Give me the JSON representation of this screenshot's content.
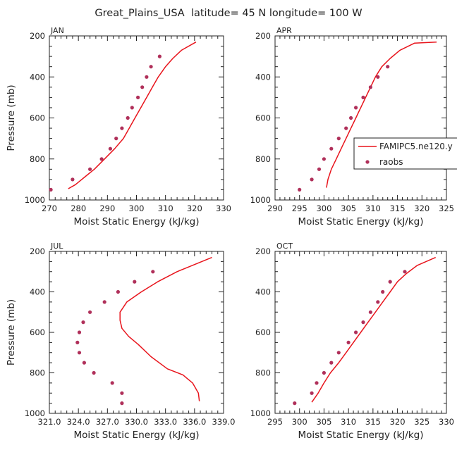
{
  "title": "Great_Plains_USA  latitude= 45 N longitude= 100 W",
  "colors": {
    "model": "#e8141c",
    "obs": "#b0305a",
    "axis": "#222222"
  },
  "legend": {
    "model_label": "FAMIPC5.ne120.y",
    "obs_label": "raobs"
  },
  "chart_data": [
    {
      "type": "line",
      "panel": "JAN",
      "xlabel": "Moist Static Energy (kJ/kg)",
      "ylabel": "Pressure (mb)",
      "xlim": [
        270,
        330
      ],
      "ylim": [
        1000,
        200
      ],
      "xticks": [
        "270",
        "280",
        "290",
        "300",
        "310",
        "320",
        "330"
      ],
      "yticks": [
        "200",
        "400",
        "600",
        "800",
        "1000"
      ],
      "series": [
        {
          "name": "FAMIPC5.ne120.y",
          "kind": "line",
          "x": [
            276.5,
            279,
            282,
            285.5,
            289,
            292.5,
            295.5,
            297.5,
            299.5,
            301.5,
            303.5,
            305.5,
            307.5,
            310,
            312.5,
            315.5,
            320.5
          ],
          "y": [
            945,
            925,
            890,
            850,
            800,
            750,
            700,
            650,
            600,
            550,
            500,
            450,
            400,
            350,
            310,
            270,
            230
          ]
        },
        {
          "name": "raobs",
          "kind": "scatter",
          "x": [
            270.5,
            278,
            284,
            288,
            291,
            293,
            295,
            297,
            298.5,
            300.5,
            302,
            303.5,
            305,
            308
          ],
          "y": [
            950,
            900,
            850,
            800,
            750,
            700,
            650,
            600,
            550,
            500,
            450,
            400,
            350,
            300
          ]
        }
      ]
    },
    {
      "type": "line",
      "panel": "APR",
      "xlabel": "Moist Static Energy (kJ/kg)",
      "ylabel": "",
      "xlim": [
        290,
        325
      ],
      "ylim": [
        1000,
        200
      ],
      "xticks": [
        "290",
        "295",
        "300",
        "305",
        "310",
        "315",
        "320",
        "325"
      ],
      "yticks": [
        "200",
        "400",
        "600",
        "800",
        "1000"
      ],
      "series": [
        {
          "name": "FAMIPC5.ne120.y",
          "kind": "line",
          "x": [
            300.5,
            300.8,
            301.5,
            302.5,
            303.5,
            304.5,
            305.5,
            306.5,
            307.5,
            308.5,
            309.5,
            310.5,
            311.8,
            313.5,
            315.5,
            318.5,
            323
          ],
          "y": [
            940,
            900,
            850,
            800,
            750,
            700,
            650,
            600,
            550,
            500,
            450,
            400,
            350,
            310,
            270,
            235,
            230
          ]
        },
        {
          "name": "raobs",
          "kind": "scatter",
          "x": [
            295,
            297.5,
            299,
            300,
            301.5,
            303,
            304.5,
            305.5,
            306.5,
            308,
            309.5,
            311,
            313
          ],
          "y": [
            950,
            900,
            850,
            800,
            750,
            700,
            650,
            600,
            550,
            500,
            450,
            400,
            350
          ]
        }
      ]
    },
    {
      "type": "line",
      "panel": "JUL",
      "xlabel": "Moist Static Energy (kJ/kg)",
      "ylabel": "Pressure (mb)",
      "xlim": [
        321,
        339
      ],
      "ylim": [
        1000,
        200
      ],
      "xticks": [
        "321.0",
        "324.0",
        "327.0",
        "330.0",
        "333.0",
        "336.0",
        "339.0"
      ],
      "yticks": [
        "200",
        "400",
        "600",
        "800",
        "1000"
      ],
      "series": [
        {
          "name": "FAMIPC5.ne120.y",
          "kind": "line",
          "x": [
            336.5,
            336.4,
            335.8,
            334.8,
            333.2,
            331.5,
            330.2,
            329.2,
            328.5,
            328.3,
            328.3,
            329.0,
            330.5,
            332.2,
            334.2,
            336.0,
            337.8
          ],
          "y": [
            940,
            900,
            850,
            810,
            780,
            720,
            660,
            620,
            580,
            540,
            500,
            450,
            400,
            350,
            300,
            265,
            230
          ]
        },
        {
          "name": "raobs",
          "kind": "scatter",
          "x": [
            328.5,
            328.5,
            327.5,
            325.6,
            324.6,
            324.1,
            323.9,
            324.1,
            324.5,
            325.2,
            326.7,
            328.1,
            329.8,
            331.7
          ],
          "y": [
            950,
            900,
            850,
            800,
            750,
            700,
            650,
            600,
            550,
            500,
            450,
            400,
            350,
            300
          ]
        }
      ]
    },
    {
      "type": "line",
      "panel": "OCT",
      "xlabel": "Moist Static Energy (kJ/kg)",
      "ylabel": "",
      "xlim": [
        295,
        330
      ],
      "ylim": [
        1000,
        200
      ],
      "xticks": [
        "295",
        "300",
        "305",
        "310",
        "315",
        "320",
        "325",
        "330"
      ],
      "yticks": [
        "200",
        "400",
        "600",
        "800",
        "1000"
      ],
      "series": [
        {
          "name": "FAMIPC5.ne120.y",
          "kind": "line",
          "x": [
            302.5,
            303.8,
            305,
            306.3,
            308,
            309.5,
            311,
            312.5,
            314,
            315.5,
            317,
            318.5,
            320,
            321.8,
            324,
            327.8
          ],
          "y": [
            945,
            900,
            850,
            800,
            750,
            700,
            650,
            600,
            550,
            500,
            450,
            400,
            350,
            310,
            270,
            230
          ]
        },
        {
          "name": "raobs",
          "kind": "scatter",
          "x": [
            299,
            302.5,
            303.5,
            305,
            306.5,
            308,
            310,
            311.5,
            313,
            314.5,
            316,
            317,
            318.5,
            321.5
          ],
          "y": [
            950,
            900,
            850,
            800,
            750,
            700,
            650,
            600,
            550,
            500,
            450,
            400,
            350,
            300
          ]
        }
      ]
    }
  ]
}
